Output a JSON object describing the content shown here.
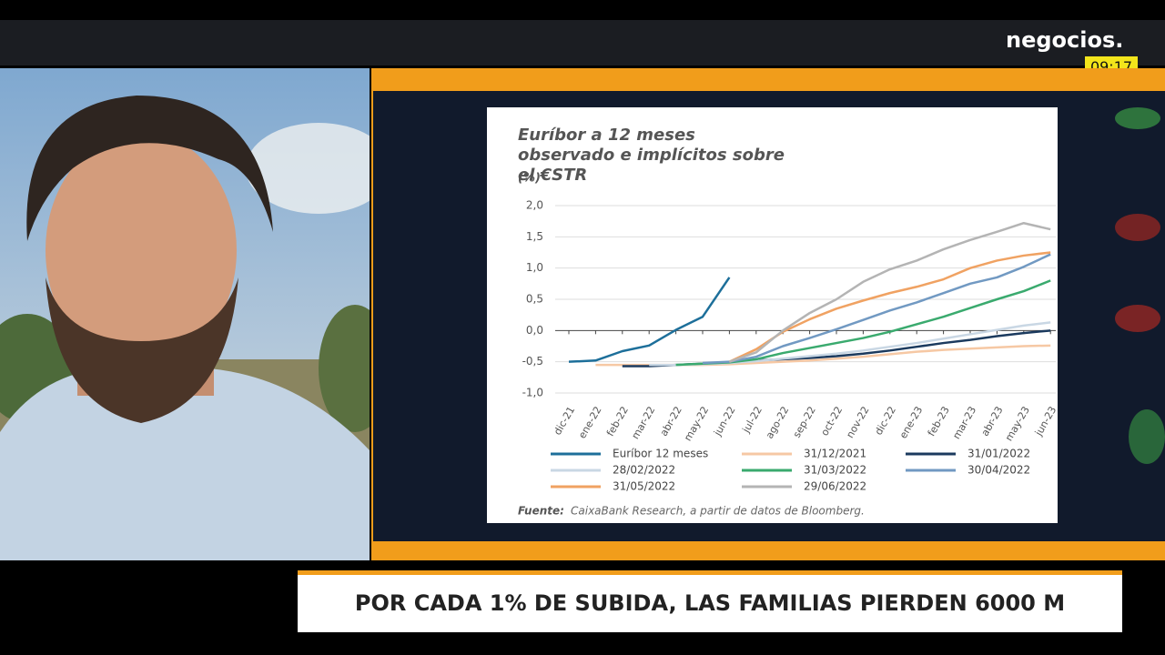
{
  "broadcast": {
    "logo": "negocios.",
    "time": "09:17",
    "headline": "POR CADA 1% DE SUBIDA, LAS FAMILIAS PIERDEN 6000 M"
  },
  "chart_data": {
    "type": "line",
    "title": "Euríbor a 12 meses observado e implícitos sobre el €STR",
    "y_label": "(%)",
    "categories": [
      "dic-21",
      "ene-22",
      "feb-22",
      "mar-22",
      "abr-22",
      "may-22",
      "jun-22",
      "jul-22",
      "ago-22",
      "sep-22",
      "oct-22",
      "nov-22",
      "dic-22",
      "ene-23",
      "feb-23",
      "mar-23",
      "abr-23",
      "may-23",
      "jun-23"
    ],
    "ylim": [
      -1,
      2
    ],
    "yticks": [
      {
        "value": -1,
        "label": "-1,0"
      },
      {
        "value": -0.5,
        "label": "-0,5"
      },
      {
        "value": 0,
        "label": "0,0"
      },
      {
        "value": 0.5,
        "label": "0,5"
      },
      {
        "value": 1,
        "label": "1,0"
      },
      {
        "value": 1.5,
        "label": "1,5"
      },
      {
        "value": 2,
        "label": "2,0"
      }
    ],
    "grid": true,
    "series": [
      {
        "name": "Euríbor 12 meses",
        "color": "#1d6f9a",
        "values": [
          -0.5,
          -0.48,
          -0.33,
          -0.24,
          0.01,
          0.22,
          0.85,
          null,
          null,
          null,
          null,
          null,
          null,
          null,
          null,
          null,
          null,
          null,
          null
        ]
      },
      {
        "name": "31/12/2021",
        "color": "#f6c8a4",
        "values": [
          null,
          -0.55,
          -0.55,
          -0.55,
          -0.55,
          -0.55,
          -0.54,
          -0.52,
          -0.5,
          -0.48,
          -0.45,
          -0.42,
          -0.38,
          -0.34,
          -0.31,
          -0.29,
          -0.27,
          -0.25,
          -0.24
        ]
      },
      {
        "name": "31/01/2022",
        "color": "#1b3a5e",
        "values": [
          null,
          null,
          -0.57,
          -0.57,
          -0.55,
          -0.53,
          -0.51,
          -0.48,
          -0.46,
          -0.44,
          -0.41,
          -0.37,
          -0.32,
          -0.26,
          -0.2,
          -0.15,
          -0.09,
          -0.04,
          0.0
        ]
      },
      {
        "name": "28/02/2022",
        "color": "#c9d7e4",
        "values": [
          null,
          null,
          null,
          -0.55,
          -0.55,
          -0.54,
          -0.52,
          -0.49,
          -0.45,
          -0.41,
          -0.37,
          -0.32,
          -0.26,
          -0.2,
          -0.13,
          -0.06,
          0.01,
          0.08,
          0.13
        ]
      },
      {
        "name": "31/03/2022",
        "color": "#3aaa6e",
        "values": [
          null,
          null,
          null,
          null,
          -0.55,
          -0.53,
          -0.51,
          -0.46,
          -0.36,
          -0.28,
          -0.2,
          -0.12,
          -0.02,
          0.1,
          0.22,
          0.36,
          0.5,
          0.63,
          0.8
        ]
      },
      {
        "name": "30/04/2022",
        "color": "#7199c2",
        "values": [
          null,
          null,
          null,
          null,
          null,
          -0.52,
          -0.5,
          -0.42,
          -0.25,
          -0.12,
          0.02,
          0.17,
          0.32,
          0.45,
          0.6,
          0.75,
          0.85,
          1.02,
          1.22
        ]
      },
      {
        "name": "31/05/2022",
        "color": "#f0a262",
        "values": [
          null,
          null,
          null,
          null,
          null,
          null,
          -0.5,
          -0.3,
          -0.02,
          0.18,
          0.35,
          0.48,
          0.6,
          0.7,
          0.82,
          1.0,
          1.12,
          1.2,
          1.25
        ]
      },
      {
        "name": "29/06/2022",
        "color": "#b4b4b4",
        "values": [
          null,
          null,
          null,
          null,
          null,
          null,
          -0.5,
          -0.35,
          0.0,
          0.28,
          0.5,
          0.78,
          0.98,
          1.12,
          1.3,
          1.45,
          1.58,
          1.72,
          1.62
        ]
      }
    ],
    "source_label": "Fuente:",
    "source": "CaixaBank Research, a partir de datos de Bloomberg."
  }
}
